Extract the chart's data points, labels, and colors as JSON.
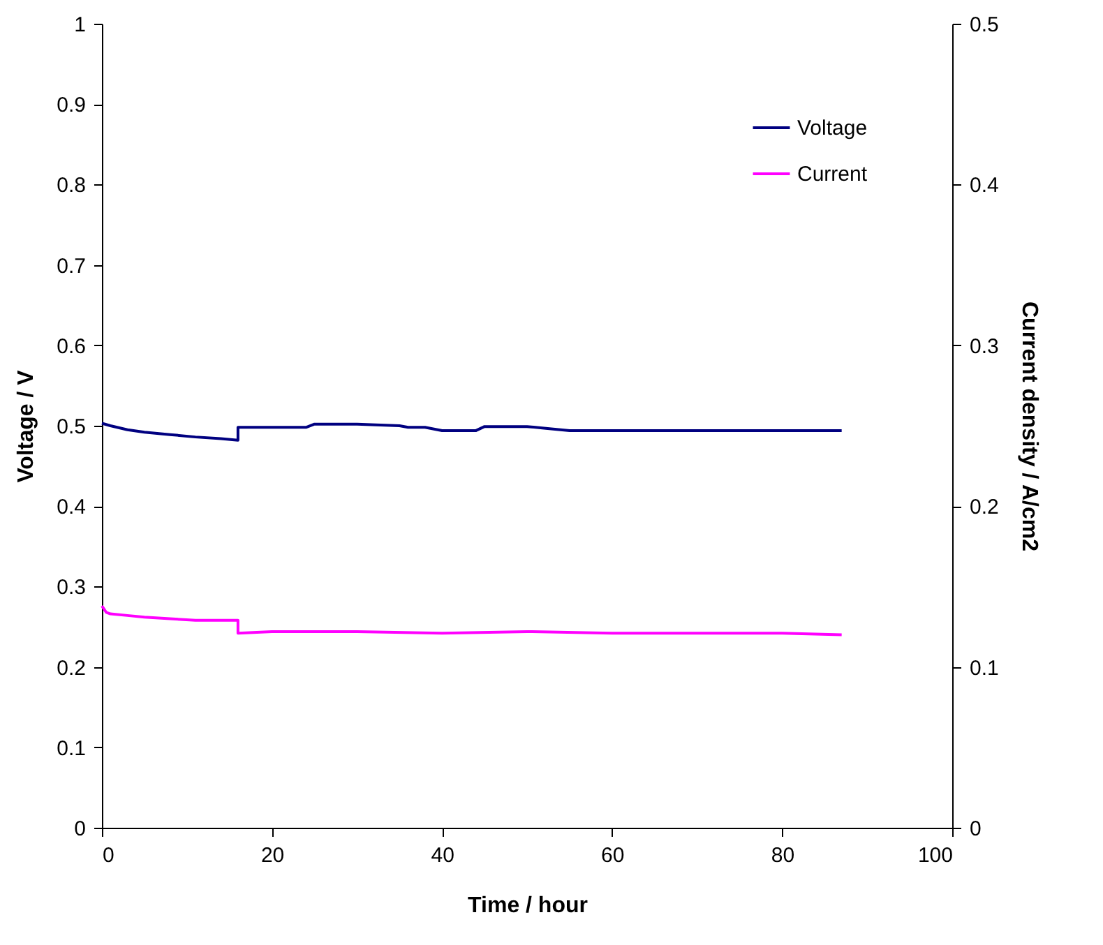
{
  "chart_data": {
    "type": "line",
    "xlabel": "Time  / hour",
    "ylabel": "Voltage / V",
    "y2label": "Current density / A/cm2",
    "xlim": [
      0,
      100
    ],
    "xticks": [
      0,
      20,
      40,
      60,
      80,
      100
    ],
    "ylim": [
      0,
      1
    ],
    "yticks": [
      0,
      0.1,
      0.2,
      0.3,
      0.4,
      0.5,
      0.6,
      0.7,
      0.8,
      0.9,
      1
    ],
    "y2lim": [
      0,
      0.5
    ],
    "y2ticks": [
      0,
      0.1,
      0.2,
      0.3,
      0.4,
      0.5
    ],
    "grid": false,
    "legend": "top right",
    "marker": "none",
    "line_style": "solid",
    "series": [
      {
        "name": "Voltage",
        "color": "#000080",
        "x": [
          0,
          1,
          3,
          5,
          8,
          11,
          14,
          16,
          16,
          20,
          24,
          25,
          30,
          35,
          36,
          38,
          40,
          44,
          45,
          50,
          52,
          55,
          60,
          70,
          80,
          87
        ],
        "values": [
          0.503,
          0.5,
          0.495,
          0.492,
          0.489,
          0.486,
          0.484,
          0.482,
          0.498,
          0.498,
          0.498,
          0.502,
          0.502,
          0.5,
          0.498,
          0.498,
          0.494,
          0.494,
          0.499,
          0.499,
          0.497,
          0.494,
          0.494,
          0.494,
          0.494,
          0.494
        ]
      },
      {
        "name": "Current",
        "color": "#ff00ff",
        "axis": "y2",
        "x": [
          0,
          0.5,
          1,
          3,
          5,
          8,
          11,
          14,
          16,
          16,
          20,
          30,
          40,
          50,
          60,
          70,
          80,
          87
        ],
        "values": [
          0.138,
          0.134,
          0.133,
          0.132,
          0.131,
          0.13,
          0.129,
          0.129,
          0.129,
          0.121,
          0.122,
          0.122,
          0.121,
          0.122,
          0.121,
          0.121,
          0.121,
          0.12
        ]
      }
    ]
  }
}
